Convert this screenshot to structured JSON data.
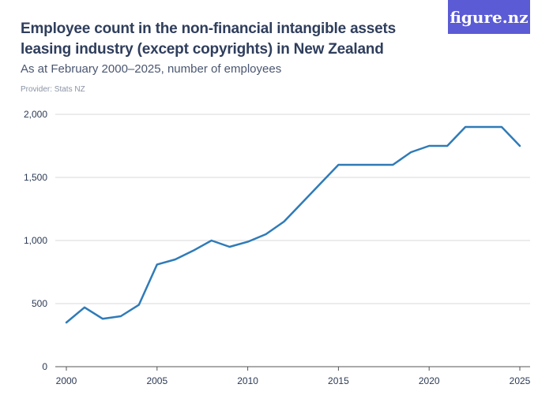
{
  "header": {
    "title": "Employee count in the non-financial intangible assets leasing industry (except copyrights) in New Zealand",
    "subtitle": "As at February 2000–2025, number of employees",
    "provider": "Provider: Stats NZ",
    "logo_text": "figure.nz"
  },
  "colors": {
    "line": "#2f7bb8",
    "grid": "#d9d9d9",
    "logo_bg": "#5b5bd6"
  },
  "chart_data": {
    "type": "line",
    "x": [
      2000,
      2001,
      2002,
      2003,
      2004,
      2005,
      2006,
      2007,
      2008,
      2009,
      2010,
      2011,
      2012,
      2013,
      2014,
      2015,
      2016,
      2017,
      2018,
      2019,
      2020,
      2021,
      2022,
      2023,
      2024,
      2025
    ],
    "series": [
      {
        "values": [
          350,
          470,
          380,
          400,
          490,
          810,
          850,
          920,
          1000,
          950,
          990,
          1050,
          1150,
          1300,
          1450,
          1600,
          1600,
          1600,
          1600,
          1700,
          1750,
          1750,
          1900,
          1900,
          1900,
          1750
        ]
      }
    ],
    "xticks": [
      2000,
      2005,
      2010,
      2015,
      2020,
      2025
    ],
    "xtick_labels": [
      "2000",
      "2005",
      "2010",
      "2015",
      "2020",
      "2025"
    ],
    "yticks": [
      0,
      500,
      1000,
      1500,
      2000
    ],
    "ytick_labels": [
      "0",
      "500",
      "1,000",
      "1,500",
      "2,000"
    ],
    "xlim": [
      2000,
      2025
    ],
    "ylim": [
      0,
      2000
    ],
    "grid": true
  }
}
